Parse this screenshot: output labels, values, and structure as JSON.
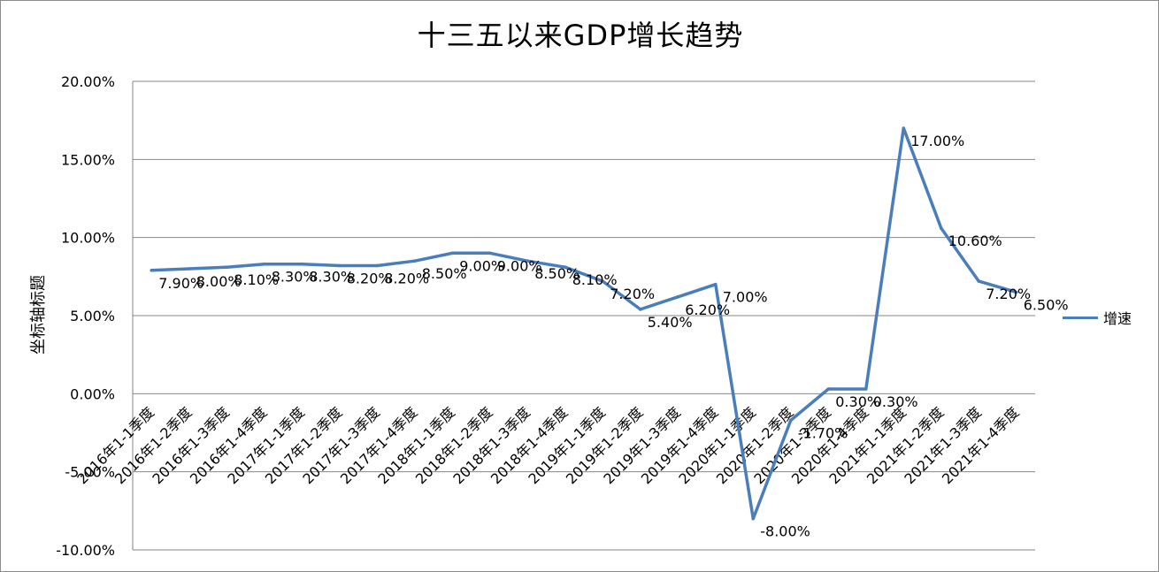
{
  "chart_data": {
    "type": "line",
    "title": "十三五以来GDP增长趋势",
    "xlabel": "",
    "ylabel": "坐标轴标题",
    "ylim": [
      -0.1,
      0.2
    ],
    "y_ticks": [
      "20.00%",
      "15.00%",
      "10.00%",
      "5.00%",
      "0.00%",
      "-5.00%",
      "-10.00%"
    ],
    "grid": true,
    "legend": "right",
    "line_color": "#4a7ebb",
    "categories": [
      "2016年1-1季度",
      "2016年1-2季度",
      "2016年1-3季度",
      "2016年1-4季度",
      "2017年1-1季度",
      "2017年1-2季度",
      "2017年1-3季度",
      "2017年1-4季度",
      "2018年1-1季度",
      "2018年1-2季度",
      "2018年1-3季度",
      "2018年1-4季度",
      "2019年1-1季度",
      "2019年1-2季度",
      "2019年1-3季度",
      "2019年1-4季度",
      "2020年1-1季度",
      "2020年1-2季度",
      "2020年1-3季度",
      "2020年1-4季度",
      "2021年1-1季度",
      "2021年1-2季度",
      "2021年1-3季度",
      "2021年1-4季度"
    ],
    "series": [
      {
        "name": "增速",
        "values": [
          0.079,
          0.08,
          0.081,
          0.083,
          0.083,
          0.082,
          0.082,
          0.085,
          0.09,
          0.09,
          0.085,
          0.081,
          0.072,
          0.054,
          0.062,
          0.07,
          -0.08,
          -0.017,
          0.003,
          0.003,
          0.17,
          0.106,
          0.072,
          0.065
        ],
        "labels": [
          "7.90%",
          "8.00%",
          "8.10%",
          "8.30%",
          "8.30%",
          "8.20%",
          "8.20%",
          "8.50%",
          "9.00%",
          "9.00%",
          "8.50%",
          "8.10%",
          "7.20%",
          "5.40%",
          "6.20%",
          "7.00%",
          "-8.00%",
          "-1.70%",
          "0.30%",
          "0.30%",
          "17.00%",
          "10.60%",
          "7.20%",
          "6.50%"
        ]
      }
    ]
  }
}
